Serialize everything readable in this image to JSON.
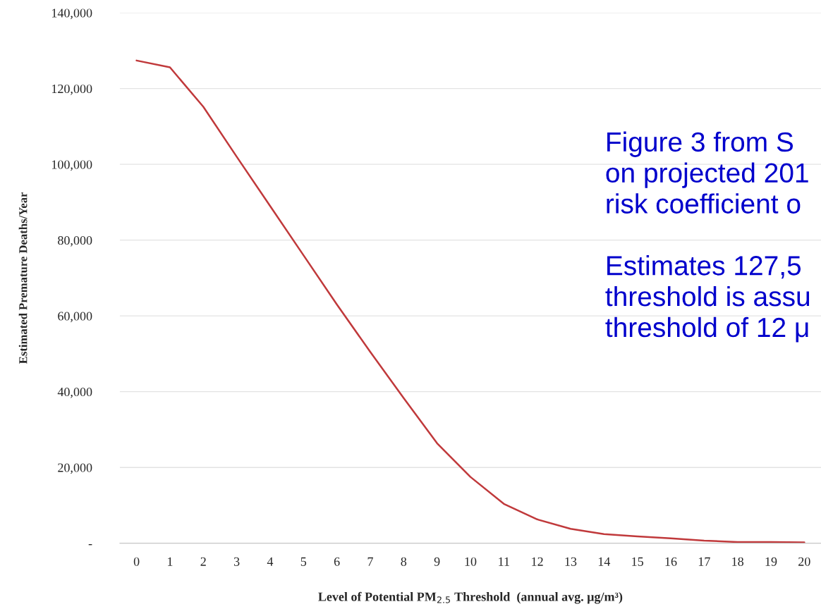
{
  "chart_data": {
    "type": "line",
    "xlabel": "Level of Potential PM$_{2.5}$ Threshold  (annual avg. μg/m³)",
    "ylabel": "Estimated Premature Deaths/Year",
    "categories": [
      "0",
      "1",
      "2",
      "3",
      "4",
      "5",
      "6",
      "7",
      "8",
      "9",
      "10",
      "11",
      "12",
      "13",
      "14",
      "15",
      "16",
      "17",
      "18",
      "19",
      "20"
    ],
    "series": [
      {
        "color": "#c0393b",
        "values": [
          127400,
          125600,
          115200,
          102000,
          89000,
          76000,
          63000,
          50500,
          38300,
          26400,
          17500,
          10400,
          6300,
          3800,
          2400,
          1800,
          1300,
          700,
          300,
          300,
          200
        ]
      }
    ],
    "ylim": [
      0,
      140000
    ],
    "yticks": [
      {
        "value": 0,
        "label": "-"
      },
      {
        "value": 20000,
        "label": "20,000"
      },
      {
        "value": 40000,
        "label": "40,000"
      },
      {
        "value": 60000,
        "label": "60,000"
      },
      {
        "value": 80000,
        "label": "80,000"
      },
      {
        "value": 100000,
        "label": "100,000"
      },
      {
        "value": 120000,
        "label": "120,000"
      },
      {
        "value": 140000,
        "label": "140,000"
      }
    ],
    "grid": "y",
    "marker": "none",
    "line_style": "solid",
    "annotations": [
      "Figure 3 from S\non projected 201\nrisk coefficient o\n\nEstimates 127,5\nthreshold is assu\nthreshold of 12 μ"
    ]
  }
}
